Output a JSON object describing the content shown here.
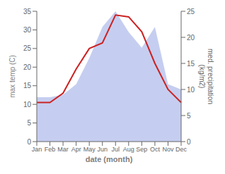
{
  "chart_data": {
    "type": "line",
    "categories": [
      "Jan",
      "Feb",
      "Mar",
      "Apr",
      "May",
      "Jun",
      "Jul",
      "Aug",
      "Sep",
      "Oct",
      "Nov",
      "Dec"
    ],
    "series": [
      {
        "type": "area",
        "color": "#c5cef0",
        "values": [
          8.5,
          8.5,
          9.0,
          11.0,
          16.0,
          22.0,
          25.0,
          21.0,
          18.0,
          22.0,
          11.0,
          10.0
        ],
        "axis": "y2"
      },
      {
        "type": "line",
        "color": "#cc2222",
        "values": [
          10.5,
          10.5,
          13.0,
          19.5,
          25.0,
          26.5,
          34.0,
          33.5,
          29.5,
          21.0,
          14.0,
          10.5
        ],
        "axis": "y"
      }
    ],
    "xlabel": "date (month)",
    "ylabel": "max temp (C)",
    "y2label": "med. precipitation\n(kg/m2)",
    "ylim": [
      0,
      35
    ],
    "yticks": [
      0,
      5,
      10,
      15,
      20,
      25,
      30,
      35
    ],
    "y2lim": [
      0,
      25
    ],
    "y2ticks": [
      0,
      5,
      10,
      15,
      20,
      25
    ],
    "grid": false
  }
}
